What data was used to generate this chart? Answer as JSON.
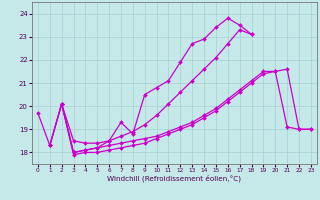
{
  "xlabel": "Windchill (Refroidissement éolien,°C)",
  "xlim": [
    -0.5,
    23.5
  ],
  "ylim": [
    17.5,
    24.5
  ],
  "yticks": [
    18,
    19,
    20,
    21,
    22,
    23,
    24
  ],
  "xticks": [
    0,
    1,
    2,
    3,
    4,
    5,
    6,
    7,
    8,
    9,
    10,
    11,
    12,
    13,
    14,
    15,
    16,
    17,
    18,
    19,
    20,
    21,
    22,
    23
  ],
  "background_color": "#c5e8e8",
  "grid_color": "#a8d0d0",
  "line_color": "#cc00cc",
  "line_width": 0.9,
  "marker_size": 2.0,
  "lines": [
    {
      "x": [
        0,
        1,
        2,
        3,
        4,
        5,
        6,
        7,
        8,
        9,
        10,
        11,
        12,
        13,
        14,
        15,
        16,
        17,
        18
      ],
      "y": [
        19.7,
        18.3,
        20.1,
        18.0,
        18.1,
        18.2,
        18.5,
        19.3,
        18.8,
        20.5,
        20.8,
        21.1,
        21.9,
        22.7,
        22.9,
        23.4,
        23.8,
        23.5,
        23.1
      ]
    },
    {
      "x": [
        2,
        3,
        4,
        5,
        6,
        7,
        8,
        9,
        10,
        11,
        12,
        13,
        14,
        15,
        16,
        17,
        18
      ],
      "y": [
        20.1,
        18.5,
        18.4,
        18.4,
        18.5,
        18.7,
        18.9,
        19.2,
        19.6,
        20.1,
        20.6,
        21.1,
        21.6,
        22.1,
        22.7,
        23.3,
        23.1
      ]
    },
    {
      "x": [
        1,
        2,
        3,
        4,
        5,
        6,
        7,
        8,
        9,
        10,
        11,
        12,
        13,
        14,
        15,
        16,
        17,
        18,
        19,
        20,
        21,
        22,
        23
      ],
      "y": [
        18.3,
        20.1,
        18.0,
        18.1,
        18.2,
        18.3,
        18.4,
        18.5,
        18.6,
        18.7,
        18.9,
        19.1,
        19.3,
        19.6,
        19.9,
        20.3,
        20.7,
        21.1,
        21.5,
        21.5,
        21.6,
        19.0,
        19.0
      ]
    },
    {
      "x": [
        1,
        2,
        3,
        4,
        5,
        6,
        7,
        8,
        9,
        10,
        11,
        12,
        13,
        14,
        15,
        16,
        17,
        18,
        19,
        20,
        21,
        22,
        23
      ],
      "y": [
        18.3,
        20.1,
        17.9,
        18.0,
        18.0,
        18.1,
        18.2,
        18.3,
        18.4,
        18.6,
        18.8,
        19.0,
        19.2,
        19.5,
        19.8,
        20.2,
        20.6,
        21.0,
        21.4,
        21.5,
        19.1,
        19.0,
        19.0
      ]
    }
  ]
}
